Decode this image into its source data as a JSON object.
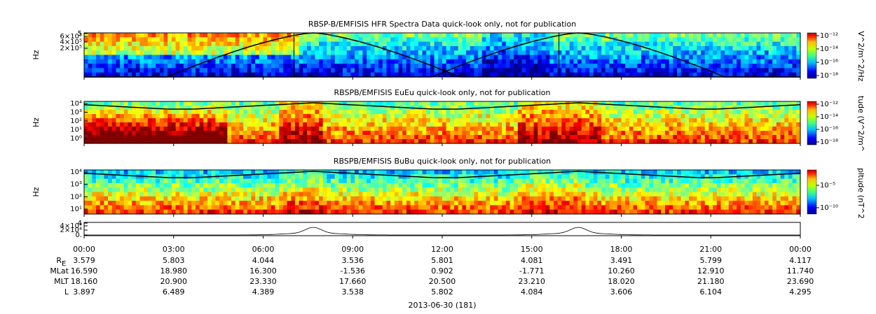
{
  "panels": [
    {
      "title": "RBSP-B/EMFISIS  HFR Spectra Data quick-look only, not for publication",
      "ylabel": "Hz",
      "yticks": [
        "5",
        "6×10⁵",
        "4×10⁵",
        "2×10⁵"
      ],
      "cbar_label": "V^2/m^2/Hz",
      "cbar_ticks": [
        "10⁻¹²",
        "10⁻¹⁴",
        "10⁻¹⁶",
        "10⁻¹⁸"
      ]
    },
    {
      "title": "RBSPB/EMFISIS  EuEu quick-look only, not for publication",
      "ylabel": "Hz",
      "yticks": [
        "10⁴",
        "10³",
        "10²",
        "10¹",
        "10⁰"
      ],
      "cbar_label": "tude (V^2/m^",
      "cbar_ticks": [
        "10⁻¹²",
        "10⁻¹⁴",
        "10⁻¹⁶",
        "10⁻¹⁸"
      ]
    },
    {
      "title": "RBSPB/EMFISIS  BuBu quick-look only, not for publication",
      "ylabel": "Hz",
      "yticks": [
        "10⁴",
        "10³",
        "10²",
        "10¹"
      ],
      "cbar_label": "pltude (nT^2",
      "cbar_ticks": [
        "10⁻⁵",
        "10⁻¹⁰"
      ]
    },
    {
      "yticks": [
        "4",
        "4×10⁴",
        "2×10⁴",
        "0."
      ]
    }
  ],
  "time_ticks": [
    "00:00",
    "03:00",
    "06:00",
    "09:00",
    "12:00",
    "15:00",
    "18:00",
    "21:00",
    "00:00"
  ],
  "ephemeris": [
    {
      "label": "R",
      "sub": "E",
      "values": [
        "3.579",
        "5.803",
        "4.044",
        "3.536",
        "5.801",
        "4.081",
        "3.491",
        "5.799",
        "4.117"
      ]
    },
    {
      "label": "MLat",
      "values": [
        "16.590",
        "18.980",
        "16.300",
        "-1.536",
        "0.902",
        "-1.771",
        "10.260",
        "12.910",
        "11.740"
      ]
    },
    {
      "label": "MLT",
      "values": [
        "18.160",
        "20.900",
        "23.330",
        "17.660",
        "20.500",
        "23.210",
        "18.020",
        "21.180",
        "23.690"
      ]
    },
    {
      "label": "L",
      "values": [
        "3.897",
        "6.489",
        "4.389",
        "3.538",
        "5.802",
        "4.084",
        "3.606",
        "6.104",
        "4.295"
      ]
    }
  ],
  "date": "2013-06-30 (181)"
}
